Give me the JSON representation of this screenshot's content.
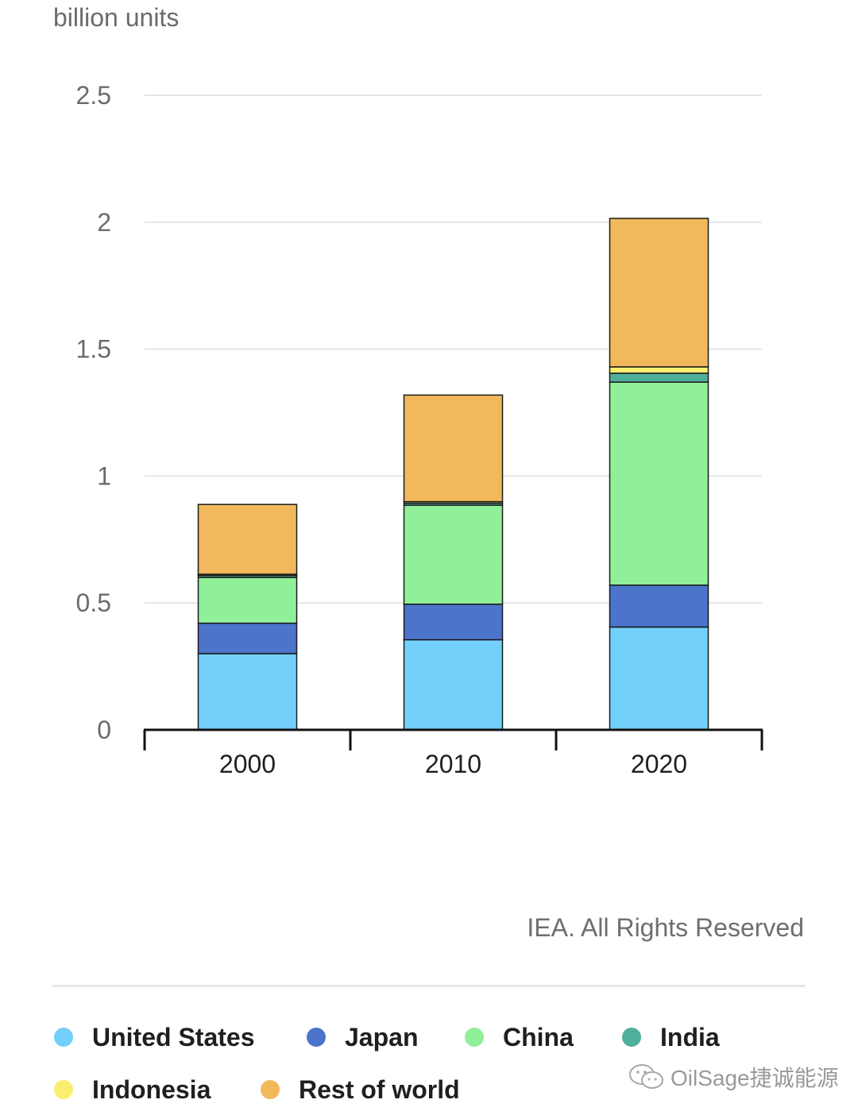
{
  "chart_data": {
    "type": "bar",
    "stacked": true,
    "ylabel": "billion units",
    "categories": [
      "2000",
      "2010",
      "2020"
    ],
    "yticks": [
      "0",
      "0.5",
      "1",
      "1.5",
      "2",
      "2.5"
    ],
    "ylim": [
      0,
      2.5
    ],
    "grid": true,
    "series": [
      {
        "name": "United States",
        "color": "#72d0fb",
        "values": [
          0.3,
          0.355,
          0.405
        ]
      },
      {
        "name": "Japan",
        "color": "#4b74ca",
        "values": [
          0.12,
          0.14,
          0.165
        ]
      },
      {
        "name": "China",
        "color": "#90ef99",
        "values": [
          0.18,
          0.39,
          0.8
        ]
      },
      {
        "name": "India",
        "color": "#4faf9c",
        "values": [
          0.008,
          0.008,
          0.035
        ]
      },
      {
        "name": "Indonesia",
        "color": "#fbee6e",
        "values": [
          0.005,
          0.006,
          0.025
        ]
      },
      {
        "name": "Rest of world",
        "color": "#f1b95c",
        "values": [
          0.275,
          0.42,
          0.585
        ]
      }
    ],
    "legend_position": "bottom"
  },
  "credit": "IEA. All Rights Reserved",
  "watermark": "OilSage捷诚能源"
}
